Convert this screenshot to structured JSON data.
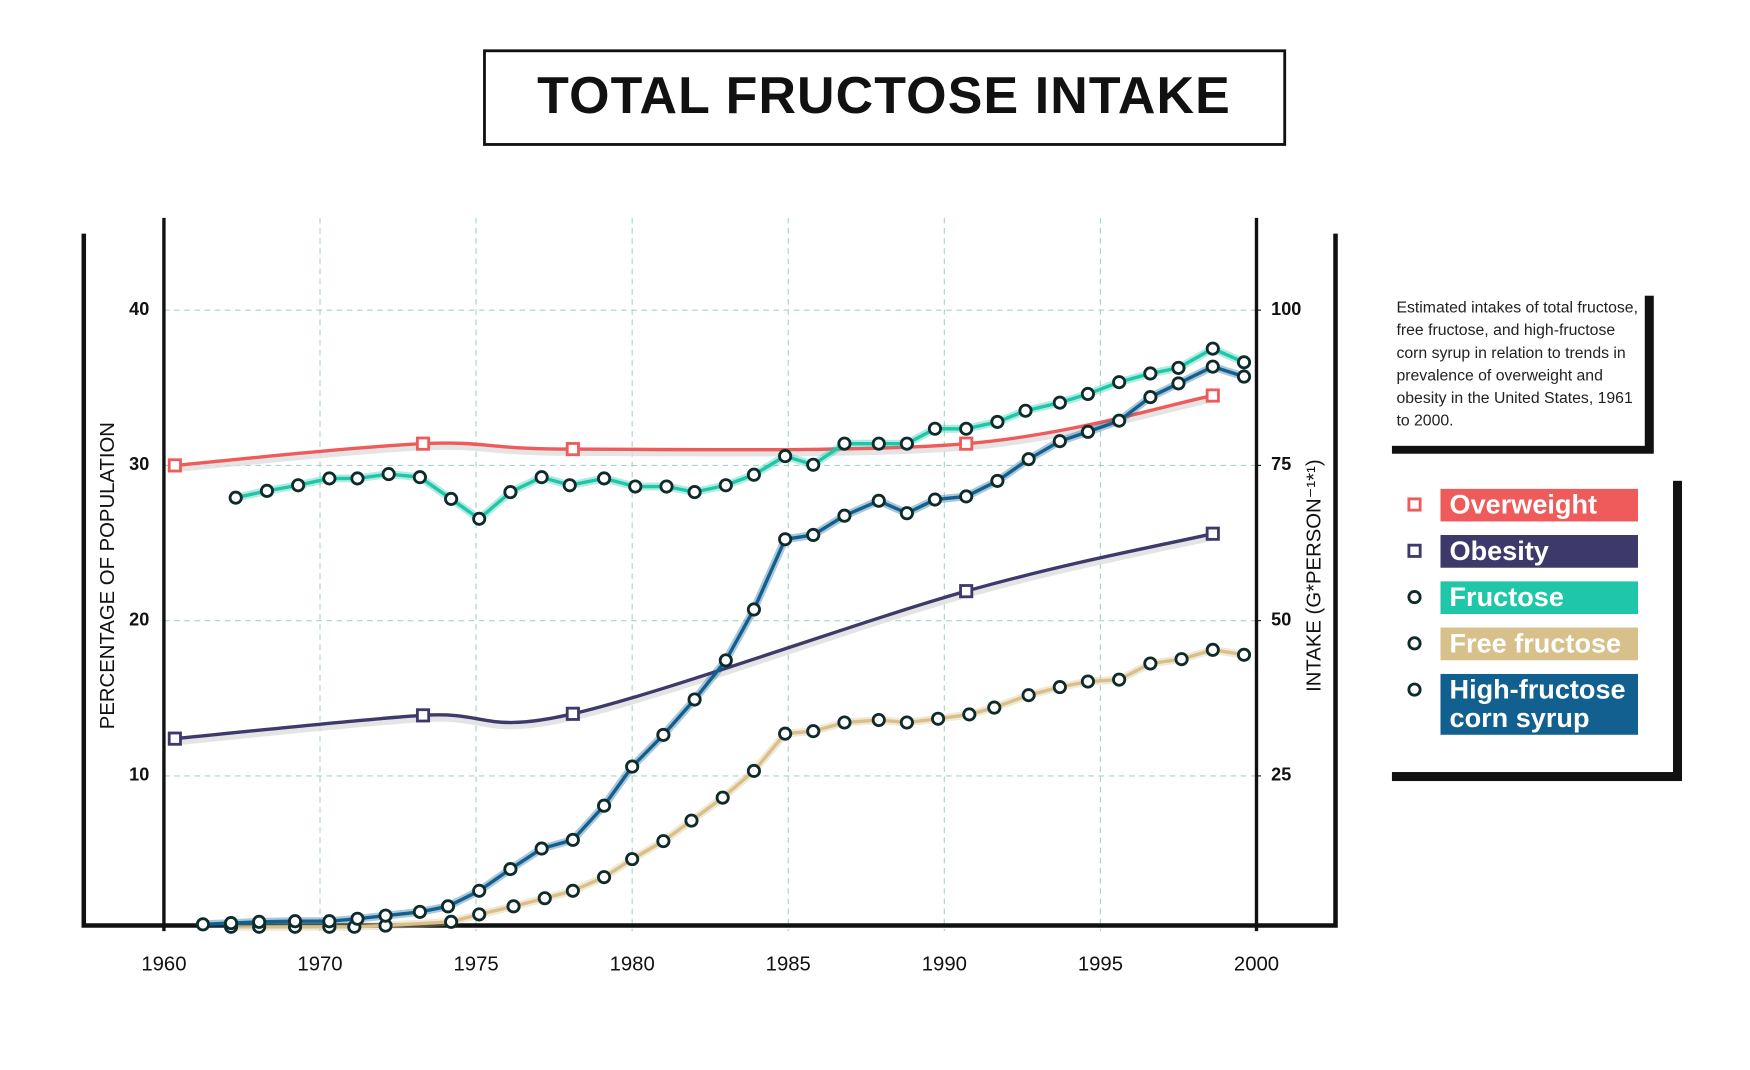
{
  "chart_data": {
    "type": "line",
    "title": "TOTAL FRUCTOSE INTAKE",
    "ylabel": "PERCENTAGE OF POPULATION",
    "y2label": "INTAKE (G*PERSON⁻¹*¹)",
    "note": "Estimated intakes of total fructose, free fructose, and high-fructose corn syrup in relation to trends in prevalence of overweight and obesity in the United States, 1961 to 2000.",
    "xlim": [
      1960,
      2000
    ],
    "xticks": [
      1960,
      1970,
      1975,
      1980,
      1985,
      1990,
      1995,
      2000
    ],
    "ylim": [
      0,
      45
    ],
    "yticks": [
      10,
      20,
      30,
      40
    ],
    "y2lim": [
      0,
      112.5
    ],
    "y2ticks": [
      25,
      50,
      75,
      100
    ],
    "grid": true,
    "series": [
      {
        "name": "Overweight",
        "color": "#ef5a5a",
        "marker": "square",
        "smooth": true,
        "axis": "y",
        "x": [
          1960.7,
          1973.3,
          1978.1,
          1990.7,
          1998.6
        ],
        "values": [
          30,
          31.4,
          31.05,
          31.4,
          34.5
        ]
      },
      {
        "name": "Obesity",
        "color": "#3d3a6b",
        "marker": "square",
        "smooth": true,
        "axis": "y",
        "x": [
          1960.7,
          1973.3,
          1978.1,
          1990.7,
          1998.6
        ],
        "values": [
          12.4,
          13.9,
          14.0,
          21.9,
          25.6
        ]
      },
      {
        "name": "Fructose",
        "color": "#1fc6a8",
        "marker": "circle",
        "axis": "y2",
        "x": [
          1964.6,
          1966.6,
          1968.6,
          1970.3,
          1971.2,
          1972.2,
          1973.2,
          1974.2,
          1975.1,
          1976.1,
          1977.1,
          1978.0,
          1979.1,
          1980.1,
          1981.1,
          1982.0,
          1983.0,
          1983.9,
          1984.9,
          1985.8,
          1986.8,
          1987.9,
          1988.8,
          1989.7,
          1990.7,
          1991.7,
          1992.6,
          1993.7,
          1994.6,
          1995.6,
          1996.6,
          1997.5,
          1998.6,
          1999.6
        ],
        "values": [
          69.8,
          70.9,
          71.8,
          72.9,
          72.9,
          73.6,
          73.1,
          69.6,
          66.4,
          70.7,
          73.1,
          71.8,
          72.9,
          71.6,
          71.6,
          70.7,
          71.8,
          73.5,
          76.5,
          75.1,
          78.5,
          78.5,
          78.5,
          80.9,
          80.9,
          82.0,
          83.8,
          85.1,
          86.5,
          88.4,
          89.8,
          90.7,
          93.8,
          91.6
        ]
      },
      {
        "name": "Free fructose",
        "color": "#d8c08a",
        "marker": "circle",
        "axis": "y2",
        "x": [
          1964.3,
          1966.1,
          1968.4,
          1970.3,
          1971.1,
          1972.1,
          1974.2,
          1975.1,
          1976.2,
          1977.2,
          1978.1,
          1979.1,
          1980.0,
          1981.0,
          1981.9,
          1982.9,
          1983.9,
          1984.9,
          1985.8,
          1986.8,
          1987.9,
          1988.8,
          1989.8,
          1990.8,
          1991.6,
          1992.7,
          1993.7,
          1994.6,
          1995.6,
          1996.6,
          1997.6,
          1998.6,
          1999.6
        ],
        "values": [
          0.7,
          0.7,
          0.7,
          0.7,
          0.7,
          0.9,
          1.5,
          2.7,
          4.0,
          5.3,
          6.5,
          8.7,
          11.6,
          14.5,
          17.8,
          21.5,
          25.8,
          31.8,
          32.2,
          33.6,
          34.0,
          33.6,
          34.2,
          34.9,
          36.0,
          38.0,
          39.3,
          40.2,
          40.5,
          43.1,
          43.8,
          45.3,
          44.5
        ]
      },
      {
        "name": "High-fructose corn syrup",
        "color": "#12608f",
        "marker": "circle",
        "axis": "y2",
        "x": [
          1962.5,
          1964.3,
          1966.1,
          1968.4,
          1970.3,
          1971.2,
          1972.1,
          1973.2,
          1974.1,
          1975.1,
          1976.1,
          1977.1,
          1978.1,
          1979.1,
          1980.0,
          1981.0,
          1982.0,
          1983.0,
          1983.9,
          1984.9,
          1985.8,
          1986.8,
          1987.9,
          1988.8,
          1989.7,
          1990.7,
          1991.7,
          1992.7,
          1993.7,
          1994.6,
          1995.6,
          1996.6,
          1997.5,
          1998.6,
          1999.6
        ],
        "values": [
          1.1,
          1.3,
          1.5,
          1.6,
          1.6,
          2.0,
          2.5,
          3.1,
          4.0,
          6.5,
          10.0,
          13.3,
          14.7,
          20.2,
          26.5,
          31.6,
          37.3,
          43.6,
          51.8,
          63.1,
          63.8,
          66.9,
          69.3,
          67.3,
          69.5,
          70.0,
          72.5,
          76.0,
          78.9,
          80.4,
          82.2,
          86.0,
          88.2,
          90.9,
          89.3
        ]
      }
    ]
  }
}
